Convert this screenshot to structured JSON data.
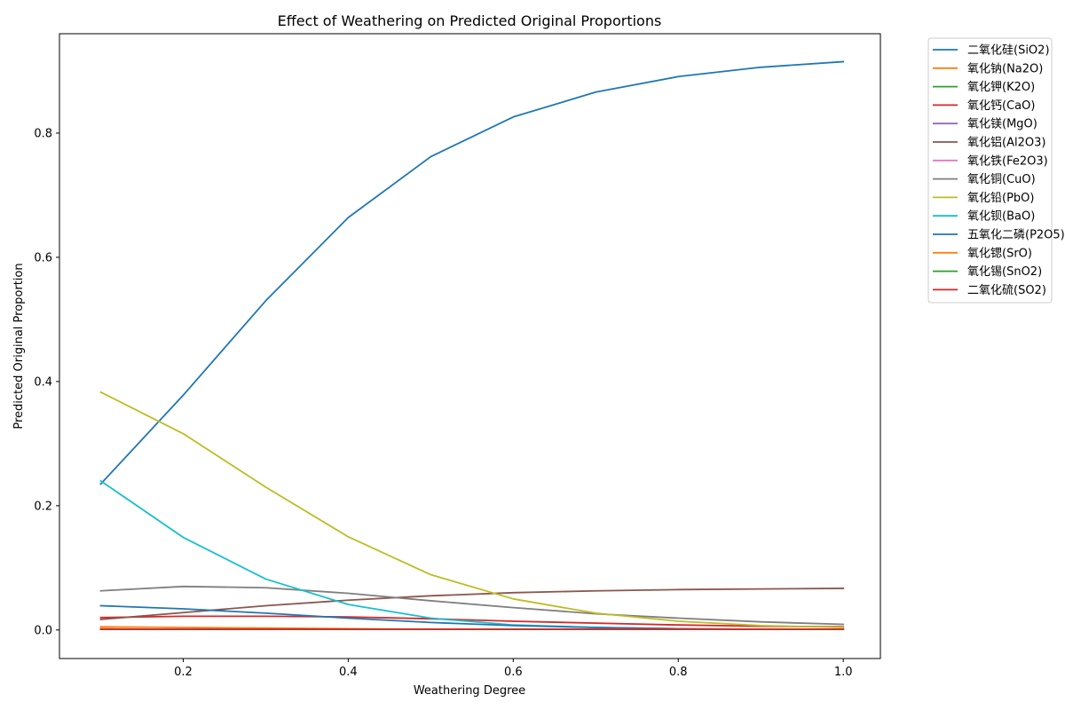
{
  "chart_data": {
    "type": "line",
    "title": "Effect of Weathering on Predicted Original Proportions",
    "xlabel": "Weathering Degree",
    "ylabel": "Predicted Original Proportion",
    "xlim": [
      0.05,
      1.045
    ],
    "ylim": [
      -0.046,
      0.96
    ],
    "x_ticks": [
      0.2,
      0.4,
      0.6,
      0.8,
      1.0
    ],
    "x_tick_labels": [
      "0.2",
      "0.4",
      "0.6",
      "0.8",
      "1.0"
    ],
    "y_ticks": [
      0.0,
      0.2,
      0.4,
      0.6,
      0.8
    ],
    "y_tick_labels": [
      "0.0",
      "0.2",
      "0.4",
      "0.6",
      "0.8"
    ],
    "grid": false,
    "legend_position": "outside-top-right",
    "x": [
      0.1,
      0.2,
      0.3,
      0.4,
      0.5,
      0.6,
      0.7,
      0.8,
      0.9,
      1.0
    ],
    "series": [
      {
        "name": "二氧化硅(SiO2)",
        "color": "#1f77b4",
        "values": [
          0.235,
          0.378,
          0.53,
          0.664,
          0.762,
          0.826,
          0.866,
          0.891,
          0.906,
          0.915
        ]
      },
      {
        "name": "氧化钠(Na2O)",
        "color": "#ff7f0e",
        "values": [
          0.002,
          0.001,
          0.001,
          0.001,
          0.001,
          0.001,
          0.001,
          0.001,
          0.001,
          0.001
        ]
      },
      {
        "name": "氧化钾(K2O)",
        "color": "#2ca02c",
        "values": [
          0.001,
          0.001,
          0.001,
          0.001,
          0.001,
          0.001,
          0.001,
          0.001,
          0.001,
          0.001
        ]
      },
      {
        "name": "氧化钙(CaO)",
        "color": "#d62728",
        "values": [
          0.02,
          0.022,
          0.022,
          0.021,
          0.018,
          0.014,
          0.011,
          0.008,
          0.006,
          0.005
        ]
      },
      {
        "name": "氧化镁(MgO)",
        "color": "#9467bd",
        "values": [
          0.001,
          0.001,
          0.001,
          0.001,
          0.001,
          0.001,
          0.001,
          0.001,
          0.001,
          0.001
        ]
      },
      {
        "name": "氧化铝(Al2O3)",
        "color": "#8c564b",
        "values": [
          0.017,
          0.028,
          0.039,
          0.048,
          0.055,
          0.06,
          0.063,
          0.065,
          0.066,
          0.067
        ]
      },
      {
        "name": "氧化铁(Fe2O3)",
        "color": "#e377c2",
        "values": [
          0.001,
          0.001,
          0.001,
          0.001,
          0.001,
          0.001,
          0.001,
          0.001,
          0.001,
          0.001
        ]
      },
      {
        "name": "氧化铜(CuO)",
        "color": "#7f7f7f",
        "values": [
          0.063,
          0.07,
          0.068,
          0.059,
          0.047,
          0.036,
          0.026,
          0.019,
          0.013,
          0.009
        ]
      },
      {
        "name": "氧化铅(PbO)",
        "color": "#bcbd22",
        "values": [
          0.383,
          0.316,
          0.23,
          0.15,
          0.089,
          0.05,
          0.027,
          0.014,
          0.007,
          0.004
        ]
      },
      {
        "name": "氧化钡(BaO)",
        "color": "#17becf",
        "values": [
          0.24,
          0.149,
          0.082,
          0.041,
          0.019,
          0.008,
          0.004,
          0.002,
          0.001,
          0.001
        ]
      },
      {
        "name": "五氧化二磷(P2O5)",
        "color": "#1f77b4",
        "values": [
          0.039,
          0.034,
          0.027,
          0.019,
          0.012,
          0.007,
          0.004,
          0.002,
          0.001,
          0.001
        ]
      },
      {
        "name": "氧化锶(SrO)",
        "color": "#ff7f0e",
        "values": [
          0.005,
          0.004,
          0.003,
          0.002,
          0.001,
          0.001,
          0.001,
          0.001,
          0.001,
          0.001
        ]
      },
      {
        "name": "氧化锡(SnO2)",
        "color": "#2ca02c",
        "values": [
          0.001,
          0.001,
          0.001,
          0.001,
          0.001,
          0.001,
          0.001,
          0.001,
          0.001,
          0.001
        ]
      },
      {
        "name": "二氧化硫(SO2)",
        "color": "#d62728",
        "values": [
          0.001,
          0.001,
          0.001,
          0.001,
          0.001,
          0.001,
          0.001,
          0.001,
          0.001,
          0.001
        ]
      }
    ]
  }
}
